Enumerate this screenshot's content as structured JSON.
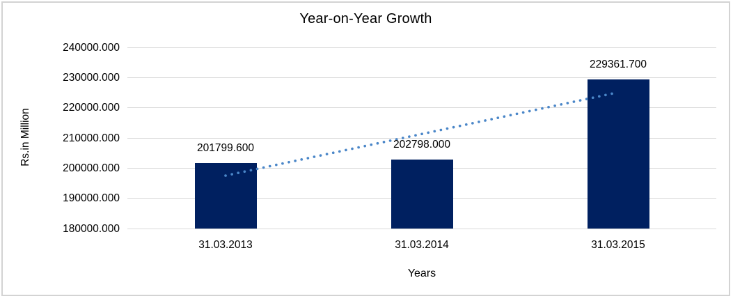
{
  "chart_data": {
    "type": "bar",
    "title": "Year-on-Year Growth",
    "xlabel": "Years",
    "ylabel": "Rs.in Million",
    "categories": [
      "31.03.2013",
      "31.03.2014",
      "31.03.2015"
    ],
    "values": [
      201799.6,
      202798.0,
      229361.7
    ],
    "data_labels": [
      "201799.600",
      "202798.000",
      "229361.700"
    ],
    "y_ticks": [
      "240000.000",
      "230000.000",
      "220000.000",
      "210000.000",
      "200000.000",
      "190000.000",
      "180000.000"
    ],
    "ylim": [
      180000,
      240000
    ],
    "grid": true,
    "legend": false,
    "bar_color": "#002060",
    "gridline_color": "#d9d9d9",
    "frame_border_color": "#d3d3d3",
    "trendline": {
      "type": "linear",
      "style": "dotted",
      "color": "#4a86c8",
      "start_value": 197530,
      "end_value": 225110
    }
  }
}
